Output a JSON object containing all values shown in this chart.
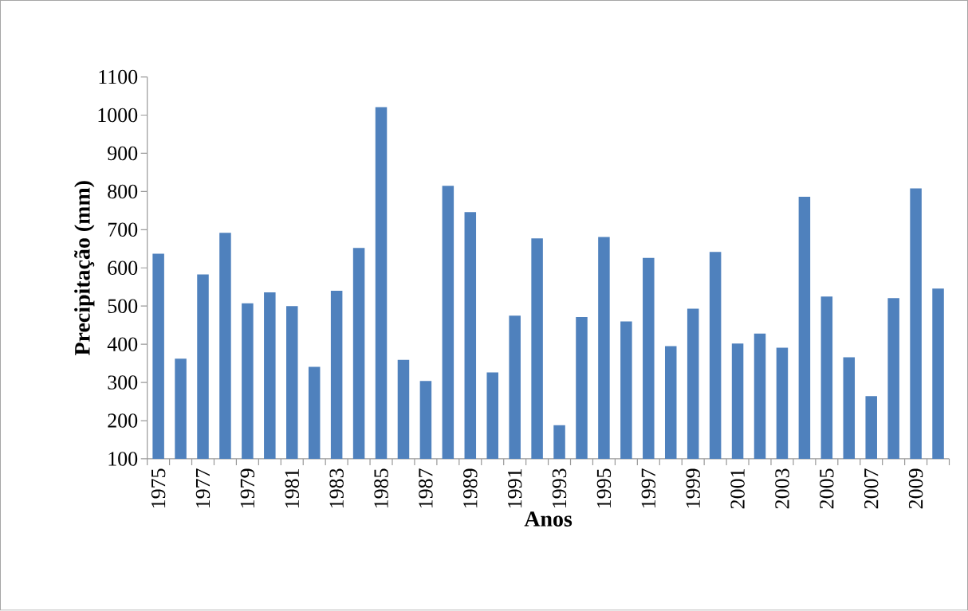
{
  "chart_data": {
    "type": "bar",
    "xlabel": "Anos",
    "ylabel": "Precipitação (mm)",
    "categories": [
      "1975",
      null,
      "1977",
      null,
      "1979",
      null,
      "1981",
      null,
      "1983",
      null,
      "1985",
      null,
      "1987",
      null,
      "1989",
      null,
      "1991",
      null,
      "1993",
      null,
      "1995",
      null,
      "1997",
      null,
      "1999",
      null,
      "2001",
      null,
      "2003",
      null,
      "2005",
      null,
      "2007",
      null,
      "2009",
      null
    ],
    "values": [
      637,
      362,
      583,
      692,
      507,
      536,
      500,
      341,
      540,
      652,
      1021,
      359,
      304,
      815,
      746,
      326,
      475,
      677,
      188,
      471,
      681,
      460,
      626,
      395,
      493,
      642,
      402,
      428,
      391,
      786,
      525,
      366,
      264,
      521,
      808,
      546
    ],
    "color": "#4f81bd",
    "ylim": [
      100,
      1100
    ],
    "yticks": [
      100,
      200,
      300,
      400,
      500,
      600,
      700,
      800,
      900,
      1000,
      1100
    ]
  }
}
